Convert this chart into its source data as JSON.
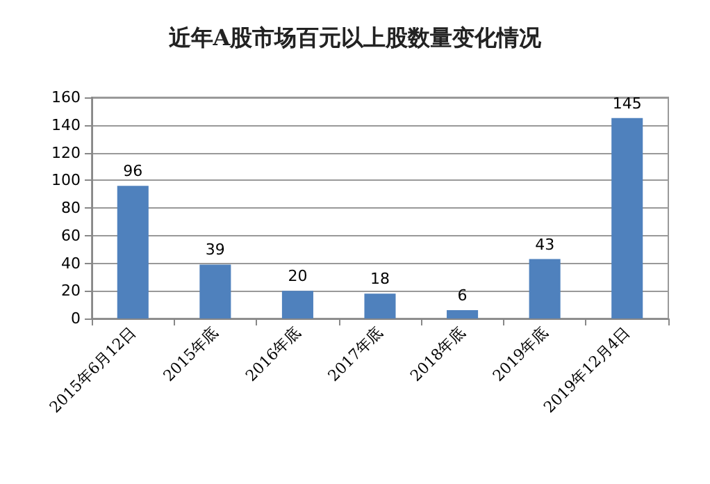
{
  "chart_data": {
    "type": "bar",
    "title": "近年A股市场百元以上股数量变化情况",
    "categories": [
      "2015年6月12日",
      "2015年底",
      "2016年底",
      "2017年底",
      "2018年底",
      "2019年底",
      "2019年12月4日"
    ],
    "values": [
      96,
      39,
      20,
      18,
      6,
      43,
      145
    ],
    "color": "#4f81bd",
    "ylim": [
      0,
      160
    ],
    "yticks": [
      0,
      20,
      40,
      60,
      80,
      100,
      120,
      140,
      160
    ],
    "grid": "y",
    "data_labels": true
  }
}
